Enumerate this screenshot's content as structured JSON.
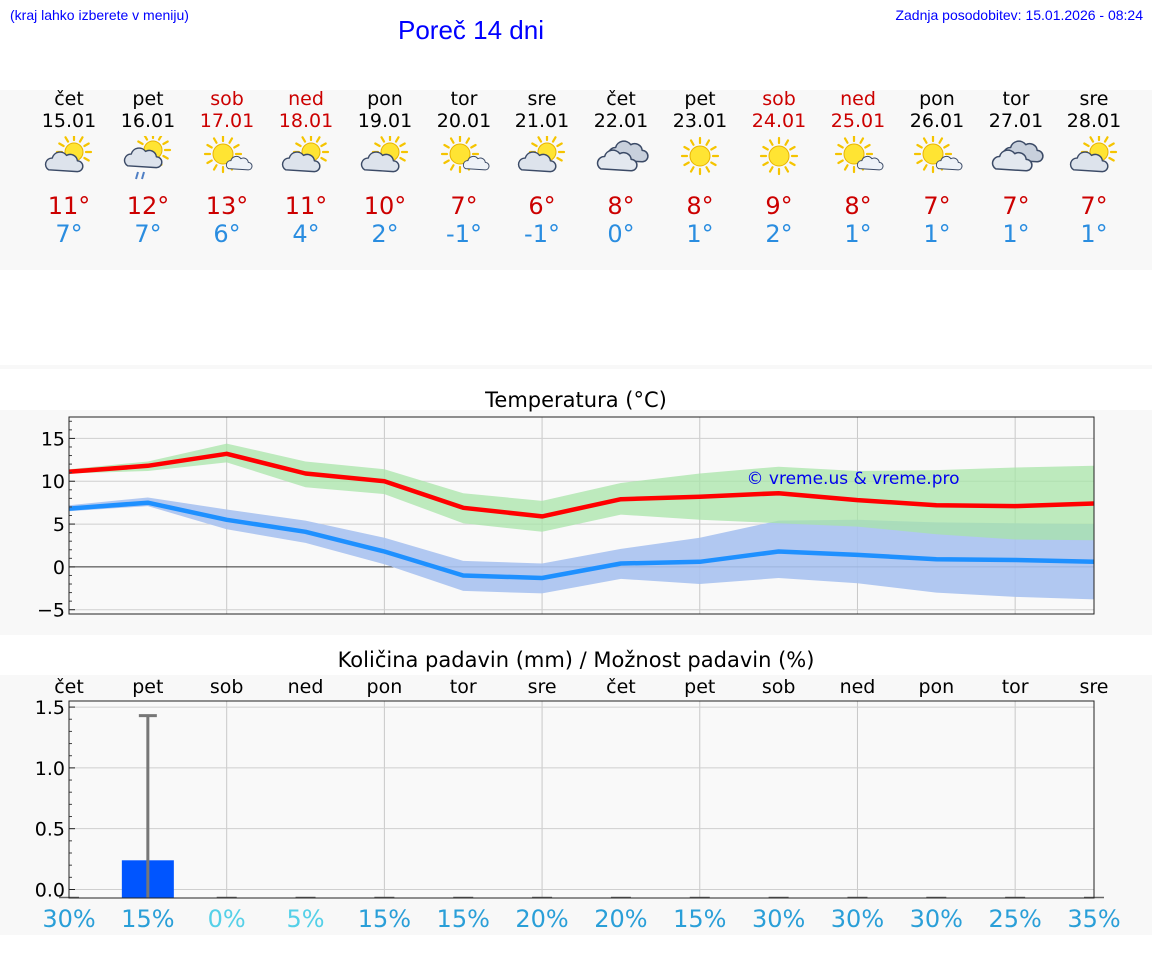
{
  "header": {
    "hint": "(kraj lahko izberete v meniju)",
    "title": "Poreč 14 dni",
    "updated": "Zadnja posodobitev: 15.01.2026 - 08:24"
  },
  "colors": {
    "max_temp": "#ff0000",
    "min_temp": "#1e90ff",
    "max_band": "#a8e4a8",
    "min_band": "#a9c2f0",
    "precip_bar": "#0055ff",
    "weekend": "#cc0000",
    "prob_high": "#2a9fd8",
    "prob_low": "#55d0e8"
  },
  "days": [
    {
      "name": "čet",
      "date": "15.01",
      "weekend": false,
      "icon": "partly-cloudy-icon",
      "max": "11°",
      "min": "7°"
    },
    {
      "name": "pet",
      "date": "16.01",
      "weekend": false,
      "icon": "light-rain-icon",
      "max": "12°",
      "min": "7°"
    },
    {
      "name": "sob",
      "date": "17.01",
      "weekend": true,
      "icon": "mostly-sunny-icon",
      "max": "13°",
      "min": "6°"
    },
    {
      "name": "ned",
      "date": "18.01",
      "weekend": true,
      "icon": "partly-cloudy-icon",
      "max": "11°",
      "min": "4°"
    },
    {
      "name": "pon",
      "date": "19.01",
      "weekend": false,
      "icon": "partly-cloudy-icon",
      "max": "10°",
      "min": "2°"
    },
    {
      "name": "tor",
      "date": "20.01",
      "weekend": false,
      "icon": "mostly-sunny-icon",
      "max": "7°",
      "min": "-1°"
    },
    {
      "name": "sre",
      "date": "21.01",
      "weekend": false,
      "icon": "partly-cloudy-icon",
      "max": "6°",
      "min": "-1°"
    },
    {
      "name": "čet",
      "date": "22.01",
      "weekend": false,
      "icon": "cloudy-icon",
      "max": "8°",
      "min": "0°"
    },
    {
      "name": "pet",
      "date": "23.01",
      "weekend": false,
      "icon": "sunny-icon",
      "max": "8°",
      "min": "1°"
    },
    {
      "name": "sob",
      "date": "24.01",
      "weekend": true,
      "icon": "sunny-icon",
      "max": "9°",
      "min": "2°"
    },
    {
      "name": "ned",
      "date": "25.01",
      "weekend": true,
      "icon": "mostly-sunny-icon",
      "max": "8°",
      "min": "1°"
    },
    {
      "name": "pon",
      "date": "26.01",
      "weekend": false,
      "icon": "mostly-sunny-icon",
      "max": "7°",
      "min": "1°"
    },
    {
      "name": "tor",
      "date": "27.01",
      "weekend": false,
      "icon": "cloudy-icon",
      "max": "7°",
      "min": "1°"
    },
    {
      "name": "sre",
      "date": "28.01",
      "weekend": false,
      "icon": "partly-cloudy-icon",
      "max": "7°",
      "min": "1°"
    }
  ],
  "chart_data": [
    {
      "type": "line",
      "title": "Temperatura (°C)",
      "watermark": "© vreme.us & vreme.pro",
      "xlabel": "",
      "ylabel": "",
      "ylim": [
        -5.5,
        17.5
      ],
      "yticks": [
        -5,
        0,
        5,
        10,
        15
      ],
      "grid": true,
      "x": [
        0,
        1,
        2,
        3,
        4,
        5,
        6,
        7,
        8,
        9,
        10,
        11,
        12,
        13
      ],
      "series": [
        {
          "name": "max",
          "values": [
            11.1,
            11.8,
            13.2,
            10.9,
            10.0,
            6.9,
            5.9,
            7.9,
            8.2,
            8.6,
            7.8,
            7.2,
            7.1,
            7.4
          ]
        },
        {
          "name": "max_band_upper",
          "values": [
            11.4,
            12.3,
            14.4,
            12.3,
            11.4,
            8.6,
            7.7,
            9.8,
            10.9,
            11.7,
            11.2,
            11.3,
            11.6,
            11.8
          ]
        },
        {
          "name": "max_band_lower",
          "values": [
            10.9,
            11.2,
            12.2,
            9.3,
            8.5,
            5.1,
            4.1,
            6.1,
            5.5,
            5.1,
            4.7,
            3.8,
            3.2,
            3.1
          ]
        },
        {
          "name": "min",
          "values": [
            6.8,
            7.5,
            5.5,
            4.1,
            1.8,
            -1.0,
            -1.3,
            0.4,
            0.6,
            1.8,
            1.4,
            0.9,
            0.8,
            0.6
          ]
        },
        {
          "name": "min_band_upper",
          "values": [
            7.2,
            8.1,
            6.7,
            5.4,
            3.4,
            0.7,
            0.4,
            2.1,
            3.4,
            5.4,
            5.5,
            5.2,
            5.1,
            5.0
          ]
        },
        {
          "name": "min_band_lower",
          "values": [
            6.5,
            7.1,
            4.4,
            2.8,
            0.3,
            -2.8,
            -3.1,
            -1.4,
            -2.0,
            -1.3,
            -1.9,
            -3.0,
            -3.5,
            -3.8
          ]
        }
      ]
    },
    {
      "type": "bar",
      "title": "Količina padavin (mm) / Možnost padavin (%)",
      "xlabel": "",
      "ylabel": "",
      "ylim": [
        -0.07,
        1.55
      ],
      "yticks": [
        "0.0",
        "0.5",
        "1.0",
        "1.5"
      ],
      "grid": true,
      "categories": [
        "čet",
        "pet",
        "sob",
        "ned",
        "pon",
        "tor",
        "sre",
        "čet",
        "pet",
        "sob",
        "ned",
        "pon",
        "tor",
        "sre"
      ],
      "series": [
        {
          "name": "precipitation_mm",
          "values": [
            0,
            0.24,
            0,
            0,
            0,
            0,
            0,
            0,
            0,
            0,
            0,
            0,
            0,
            0
          ]
        },
        {
          "name": "precipitation_max_mm",
          "values": [
            0,
            1.43,
            0,
            0,
            0,
            0,
            0,
            0,
            0,
            0,
            0,
            0,
            0,
            0
          ]
        }
      ],
      "probability": [
        "30%",
        "15%",
        "0%",
        "5%",
        "15%",
        "15%",
        "20%",
        "20%",
        "15%",
        "30%",
        "30%",
        "30%",
        "25%",
        "35%"
      ]
    }
  ]
}
